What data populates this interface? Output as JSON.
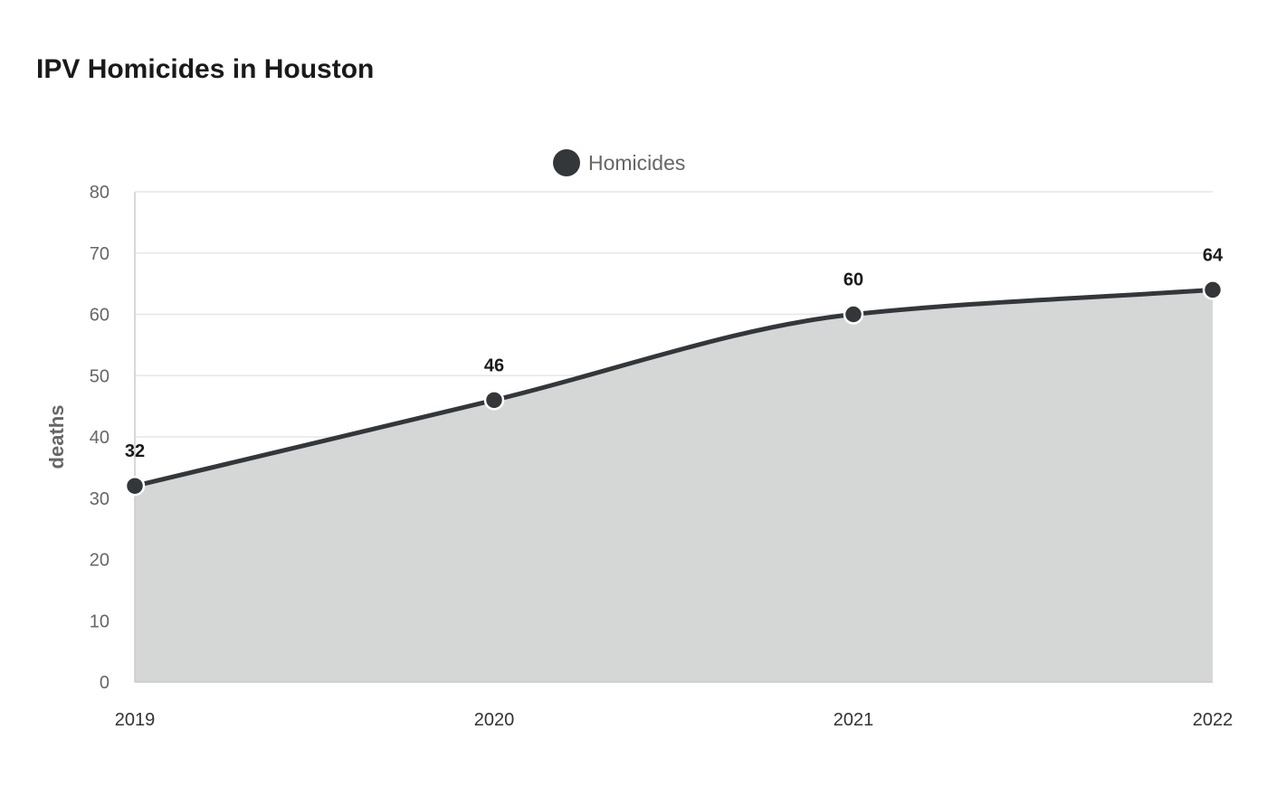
{
  "chart_data": {
    "type": "area",
    "title": "IPV Homicides in Houston",
    "xlabel": "",
    "ylabel": "deaths",
    "categories": [
      "2019",
      "2020",
      "2021",
      "2022"
    ],
    "series": [
      {
        "name": "Homicides",
        "values": [
          32,
          46,
          60,
          64
        ]
      }
    ],
    "ylim": [
      0,
      80
    ],
    "yticks": [
      0,
      10,
      20,
      30,
      40,
      50,
      60,
      70,
      80
    ],
    "grid": true,
    "legend_placement": "top-center",
    "colors": {
      "line": "#33373a",
      "fill": "#d5d6d6",
      "grid": "#e6e6e6",
      "axis": "#cccccc"
    }
  }
}
